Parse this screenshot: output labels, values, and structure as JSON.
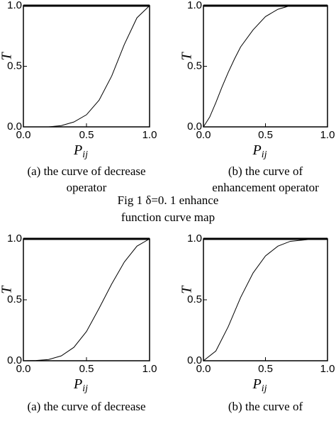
{
  "chart_data": [
    {
      "type": "line",
      "xlabel": "P",
      "xlabel_sub": "ij",
      "ylabel": "T",
      "x": [
        0,
        0.1,
        0.2,
        0.3,
        0.4,
        0.5,
        0.6,
        0.7,
        0.8,
        0.9,
        1.0
      ],
      "series": [
        {
          "color": "#000000",
          "values": [
            0,
            0,
            0,
            0.01,
            0.04,
            0.1,
            0.22,
            0.42,
            0.68,
            0.9,
            1.0
          ]
        }
      ],
      "xlim": [
        0,
        1
      ],
      "ylim": [
        0,
        1
      ],
      "xticks": [
        {
          "value": 0,
          "label": "0.0"
        },
        {
          "value": 0.5,
          "label": "0.5"
        },
        {
          "value": 1,
          "label": "1.0"
        }
      ],
      "yticks": [
        {
          "value": 0,
          "label": "0.0"
        },
        {
          "value": 0.5,
          "label": "0.5"
        },
        {
          "value": 1,
          "label": "1.0"
        }
      ],
      "caption": [
        "(a) the curve of decrease",
        "operator"
      ]
    },
    {
      "type": "line",
      "xlabel": "P",
      "xlabel_sub": "ij",
      "ylabel": "T",
      "x": [
        0,
        0.05,
        0.1,
        0.15,
        0.2,
        0.25,
        0.3,
        0.4,
        0.5,
        0.6,
        0.7,
        0.8,
        0.9,
        1.0
      ],
      "series": [
        {
          "color": "#000000",
          "values": [
            0,
            0.08,
            0.2,
            0.33,
            0.45,
            0.56,
            0.66,
            0.8,
            0.91,
            0.97,
            1.0,
            1.0,
            1.0,
            1.0
          ]
        }
      ],
      "xlim": [
        0,
        1
      ],
      "ylim": [
        0,
        1
      ],
      "xticks": [
        {
          "value": 0,
          "label": "0.0"
        },
        {
          "value": 0.5,
          "label": "0.5"
        },
        {
          "value": 1,
          "label": "1.0"
        }
      ],
      "yticks": [
        {
          "value": 0,
          "label": "0.0"
        },
        {
          "value": 0.5,
          "label": "0.5"
        },
        {
          "value": 1,
          "label": "1.0"
        }
      ],
      "caption": [
        "(b) the curve of",
        "enhancement operator"
      ]
    },
    {
      "type": "line",
      "xlabel": "P",
      "xlabel_sub": "ij",
      "ylabel": "T",
      "x": [
        0,
        0.1,
        0.2,
        0.3,
        0.4,
        0.5,
        0.6,
        0.7,
        0.8,
        0.9,
        1.0
      ],
      "series": [
        {
          "color": "#000000",
          "values": [
            0,
            0.002,
            0.01,
            0.04,
            0.11,
            0.24,
            0.43,
            0.63,
            0.81,
            0.94,
            1.0
          ]
        }
      ],
      "xlim": [
        0,
        1
      ],
      "ylim": [
        0,
        1
      ],
      "xticks": [
        {
          "value": 0,
          "label": "0.0"
        },
        {
          "value": 0.5,
          "label": "0.5"
        },
        {
          "value": 1,
          "label": "1.0"
        }
      ],
      "yticks": [
        {
          "value": 0,
          "label": "0.0"
        },
        {
          "value": 0.5,
          "label": "0.5"
        },
        {
          "value": 1,
          "label": "1.0"
        }
      ],
      "caption": [
        "(a) the curve of decrease"
      ]
    },
    {
      "type": "line",
      "xlabel": "P",
      "xlabel_sub": "ij",
      "ylabel": "T",
      "x": [
        0,
        0.1,
        0.2,
        0.3,
        0.4,
        0.5,
        0.6,
        0.7,
        0.8,
        0.9,
        1.0
      ],
      "series": [
        {
          "color": "#000000",
          "values": [
            0,
            0.08,
            0.28,
            0.52,
            0.72,
            0.86,
            0.94,
            0.98,
            0.99,
            1.0,
            1.0
          ]
        }
      ],
      "xlim": [
        0,
        1
      ],
      "ylim": [
        0,
        1
      ],
      "xticks": [
        {
          "value": 0,
          "label": "0.0"
        },
        {
          "value": 0.5,
          "label": "0.5"
        },
        {
          "value": 1,
          "label": "1.0"
        }
      ],
      "yticks": [
        {
          "value": 0,
          "label": "0.0"
        },
        {
          "value": 0.5,
          "label": "0.5"
        },
        {
          "value": 1,
          "label": "1.0"
        }
      ],
      "caption": [
        "(b) the curve of"
      ]
    }
  ],
  "figure_caption": [
    "Fig 1  δ=0. 1 enhance",
    "function curve map"
  ]
}
